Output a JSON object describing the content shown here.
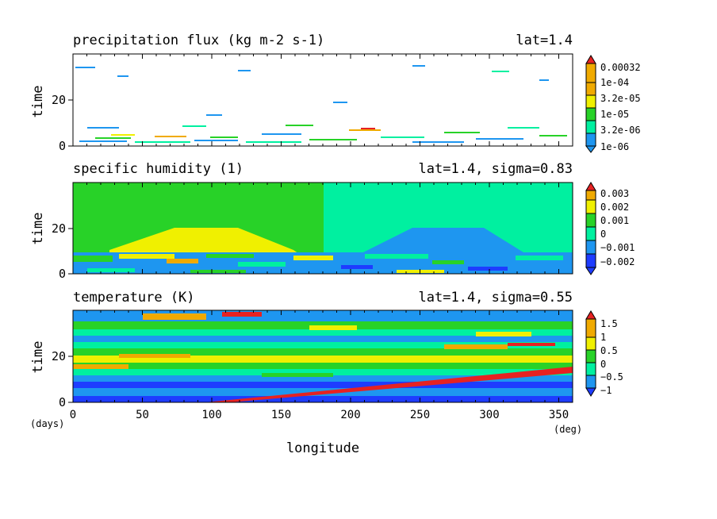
{
  "figure": {
    "xlabel": "longitude",
    "x_unit": "(deg)",
    "y_unit": "(days)",
    "x_ticks": [
      "0",
      "50",
      "100",
      "150",
      "200",
      "250",
      "300",
      "350"
    ],
    "xlim": [
      0,
      360
    ]
  },
  "chart_data": [
    {
      "type": "heatmap",
      "title": "precipitation flux (kg m-2 s-1)",
      "subtitle": "lat=1.4",
      "ylabel": "time",
      "y_ticks": [
        "0",
        "20"
      ],
      "ylim": [
        0,
        40
      ],
      "xlim": [
        0,
        360
      ],
      "colorbar": {
        "labels": [
          "1e-06",
          "3.2e-06",
          "1e-05",
          "3.2e-05",
          "1e-04",
          "0.00032"
        ],
        "colors": [
          "#1e96f0",
          "#00f0a0",
          "#28d228",
          "#f0f000",
          "#f0aa00",
          "#e62222"
        ]
      }
    },
    {
      "type": "heatmap",
      "title": "specific humidity (1)",
      "subtitle": "lat=1.4, sigma=0.83",
      "ylabel": "time",
      "y_ticks": [
        "0",
        "20"
      ],
      "ylim": [
        0,
        40
      ],
      "xlim": [
        0,
        360
      ],
      "colorbar": {
        "labels": [
          "−0.002",
          "−0.001",
          "0",
          "0.001",
          "0.002",
          "0.003"
        ],
        "colors": [
          "#1e3cff",
          "#1e96f0",
          "#00f0a0",
          "#28d228",
          "#f0f000",
          "#f0aa00",
          "#e62222"
        ]
      }
    },
    {
      "type": "heatmap",
      "title": "temperature (K)",
      "subtitle": "lat=1.4, sigma=0.55",
      "ylabel": "time",
      "y_ticks": [
        "0",
        "20"
      ],
      "ylim": [
        0,
        40
      ],
      "xlim": [
        0,
        360
      ],
      "colorbar": {
        "labels": [
          "−1",
          "−0.5",
          "0",
          "0.5",
          "1",
          "1.5"
        ],
        "colors": [
          "#1e3cff",
          "#1e96f0",
          "#00f0a0",
          "#28d228",
          "#f0f000",
          "#f0aa00",
          "#e62222"
        ]
      }
    }
  ]
}
